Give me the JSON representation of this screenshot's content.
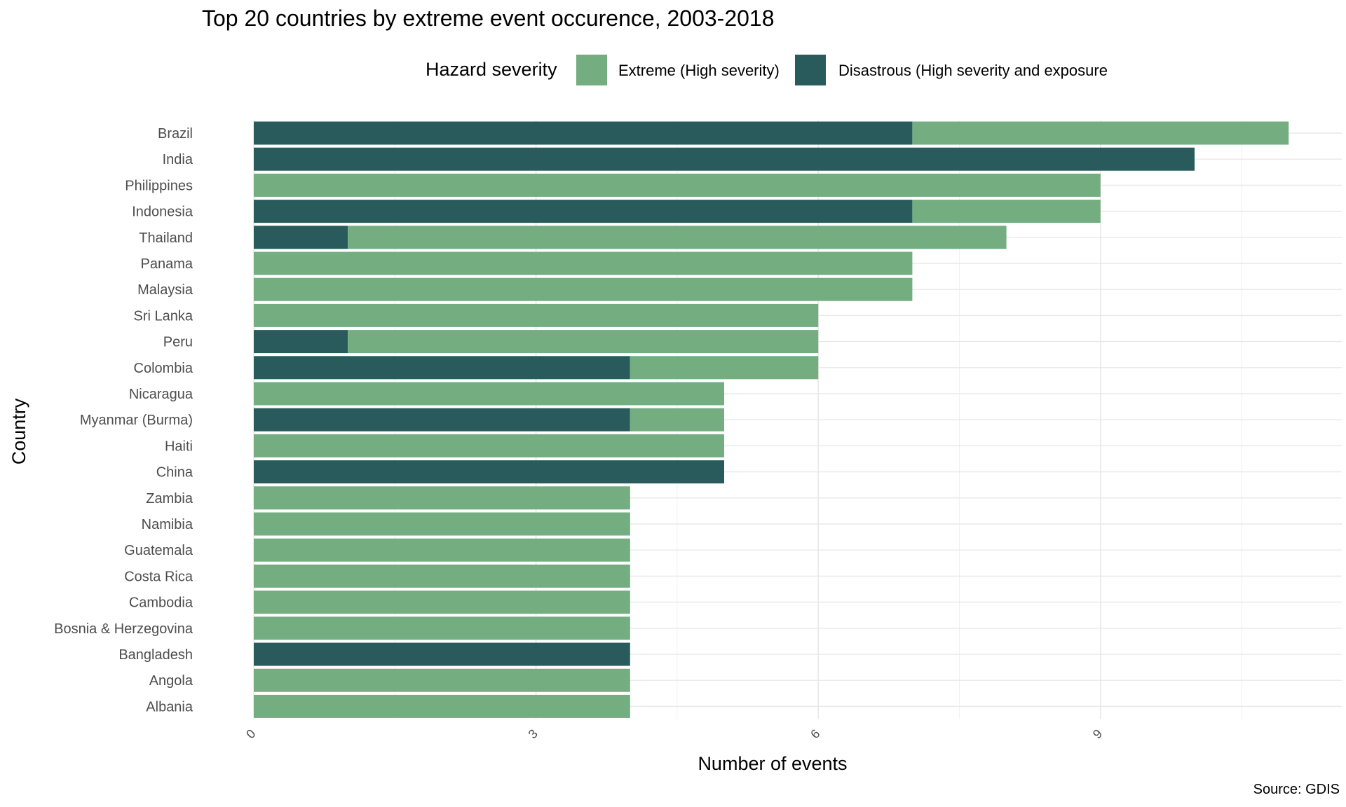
{
  "chart_data": {
    "type": "bar",
    "orientation": "horizontal",
    "stacked": true,
    "title": "Top 20 countries by extreme event occurence, 2003-2018",
    "xlabel": "Number of events",
    "ylabel": "Country",
    "source": "Source: GDIS",
    "legend_title": "Hazard severity",
    "legend_position": "top",
    "grid": true,
    "xlim": [
      0,
      11.3
    ],
    "xticks": [
      0,
      3,
      6,
      9
    ],
    "categories": [
      "Brazil",
      "India",
      "Philippines",
      "Indonesia",
      "Thailand",
      "Panama",
      "Malaysia",
      "Sri Lanka",
      "Peru",
      "Colombia",
      "Nicaragua",
      "Myanmar (Burma)",
      "Haiti",
      "China",
      "Zambia",
      "Namibia",
      "Guatemala",
      "Costa Rica",
      "Cambodia",
      "Bosnia & Herzegovina",
      "Bangladesh",
      "Angola",
      "Albania"
    ],
    "series": [
      {
        "name": "Disastrous (High severity and exposure",
        "color": "#2a5b5c",
        "values": [
          7,
          10,
          0,
          7,
          1,
          0,
          0,
          0,
          1,
          4,
          0,
          4,
          0,
          5,
          0,
          0,
          0,
          0,
          0,
          0,
          4,
          0,
          0
        ]
      },
      {
        "name": "Extreme (High severity)",
        "color": "#73ad80",
        "values": [
          4,
          0,
          9,
          2,
          7,
          7,
          7,
          6,
          5,
          2,
          5,
          1,
          5,
          0,
          4,
          4,
          4,
          4,
          4,
          4,
          0,
          4,
          4
        ]
      }
    ]
  }
}
